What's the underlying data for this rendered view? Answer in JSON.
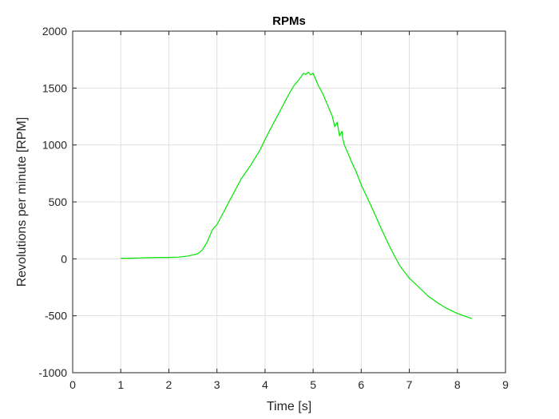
{
  "chart_data": {
    "type": "line",
    "title": "RPMs",
    "xlabel": "Time [s]",
    "ylabel": "Revolutions per minute [RPM]",
    "xlim": [
      0,
      9
    ],
    "ylim": [
      -1000,
      2000
    ],
    "xticks": [
      0,
      1,
      2,
      3,
      4,
      5,
      6,
      7,
      8,
      9
    ],
    "yticks": [
      -1000,
      -500,
      0,
      500,
      1000,
      1500,
      2000
    ],
    "xtick_labels": [
      "0",
      "1",
      "2",
      "3",
      "4",
      "5",
      "6",
      "7",
      "8",
      "9"
    ],
    "ytick_labels": [
      "-1000",
      "-500",
      "0",
      "500",
      "1000",
      "1500",
      "2000"
    ],
    "grid": true,
    "series": [
      {
        "color": "#00e600",
        "x": [
          1.0,
          1.2,
          1.4,
          1.6,
          1.8,
          2.0,
          2.2,
          2.4,
          2.6,
          2.7,
          2.8,
          2.9,
          2.95,
          3.0,
          3.1,
          3.2,
          3.3,
          3.4,
          3.5,
          3.6,
          3.7,
          3.8,
          3.9,
          4.0,
          4.1,
          4.2,
          4.3,
          4.4,
          4.5,
          4.6,
          4.7,
          4.75,
          4.8,
          4.85,
          4.9,
          4.95,
          5.0,
          5.05,
          5.1,
          5.2,
          5.3,
          5.4,
          5.45,
          5.5,
          5.55,
          5.6,
          5.62,
          5.65,
          5.7,
          5.75,
          5.8,
          5.9,
          6.0,
          6.2,
          6.4,
          6.6,
          6.8,
          7.0,
          7.2,
          7.4,
          7.6,
          7.8,
          8.0,
          8.2,
          8.3
        ],
        "y": [
          5,
          5,
          8,
          10,
          12,
          12,
          15,
          25,
          45,
          80,
          150,
          250,
          280,
          300,
          380,
          460,
          540,
          620,
          700,
          760,
          820,
          890,
          960,
          1050,
          1130,
          1210,
          1290,
          1370,
          1450,
          1520,
          1570,
          1600,
          1630,
          1620,
          1640,
          1615,
          1630,
          1580,
          1530,
          1450,
          1350,
          1250,
          1160,
          1200,
          1080,
          1120,
          1050,
          1000,
          950,
          900,
          850,
          760,
          650,
          470,
          280,
          100,
          -60,
          -170,
          -250,
          -330,
          -390,
          -440,
          -480,
          -510,
          -525
        ]
      }
    ]
  }
}
